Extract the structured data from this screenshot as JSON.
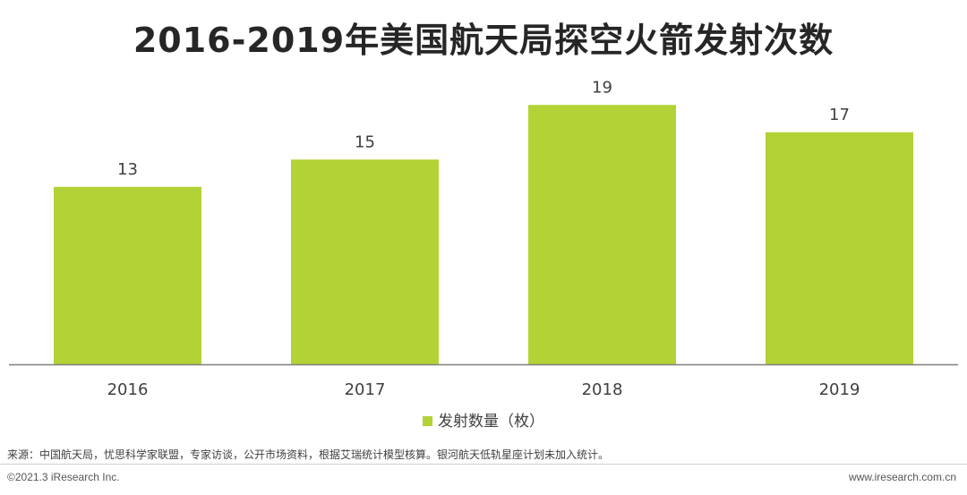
{
  "chart_data": {
    "type": "bar",
    "title": "2016-2019年美国航天局探空火箭发射次数",
    "categories": [
      "2016",
      "2017",
      "2018",
      "2019"
    ],
    "series": [
      {
        "name": "发射数量（枚）",
        "values": [
          13,
          15,
          19,
          17
        ],
        "color": "#b2d235"
      }
    ],
    "xlabel": "",
    "ylabel": "",
    "ylim": [
      0,
      20
    ],
    "grid": false,
    "legend_position": "bottom"
  },
  "footer": {
    "source": "来源：中国航天局，忧思科学家联盟，专家访谈，公开市场资料，根据艾瑞统计模型核算。银河航天低轨星座计划未加入统计。",
    "copyright": "©2021.3 iResearch Inc.",
    "website": "www.iresearch.com.cn"
  }
}
